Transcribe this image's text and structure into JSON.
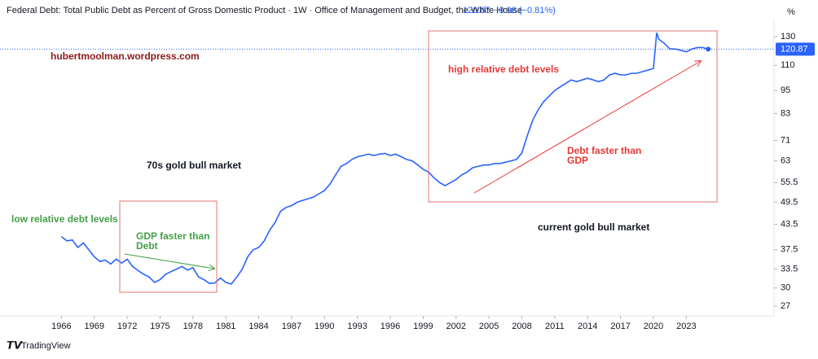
{
  "chart_data": {
    "type": "line",
    "title": "Federal Debt: Total Public Debt as Percent of Gross Domestic Product · 1W · Office of Management and Budget, the White House",
    "last_value": 120.87,
    "change_label": "−0.98 (−0.81%)",
    "y_unit": "%",
    "brand": "TradingView",
    "annotations": [
      [
        "hubertmoolman.wordpress.com"
      ],
      [
        "high relative debt levels"
      ],
      [
        "Debt faster than",
        "GDP"
      ],
      [
        "70s gold bull market"
      ],
      [
        "low relative debt levels"
      ],
      [
        "GDP faster than",
        "Debt"
      ],
      [
        "current gold bull market"
      ]
    ],
    "log_scale": true,
    "grid": false,
    "color": "#2962ff",
    "xlim": [
      1960.4,
      2031
    ],
    "ylim": [
      25.5,
      143
    ],
    "xticks": [
      1966,
      1969,
      1972,
      1975,
      1978,
      1981,
      1984,
      1987,
      1990,
      1993,
      1996,
      1999,
      2002,
      2005,
      2008,
      2011,
      2014,
      2017,
      2020,
      2023
    ],
    "yticks": [
      27,
      30,
      33.5,
      37.5,
      43.5,
      49.5,
      55.5,
      63,
      71,
      83,
      95,
      110,
      130
    ],
    "x": [
      1966,
      1966.5,
      1967,
      1967.5,
      1968,
      1968.5,
      1969,
      1969.5,
      1970,
      1970.5,
      1971,
      1971.5,
      1972,
      1972.5,
      1973,
      1973.5,
      1974,
      1974.5,
      1975,
      1975.5,
      1976,
      1976.5,
      1977,
      1977.5,
      1978,
      1978.5,
      1979,
      1979.5,
      1980,
      1980.5,
      1981,
      1981.5,
      1982,
      1982.5,
      1983,
      1983.5,
      1984,
      1984.5,
      1985,
      1985.5,
      1986,
      1986.5,
      1987,
      1987.5,
      1988,
      1988.5,
      1989,
      1989.5,
      1990,
      1990.5,
      1991,
      1991.5,
      1992,
      1992.5,
      1993,
      1993.5,
      1994,
      1994.5,
      1995,
      1995.5,
      1996,
      1996.5,
      1997,
      1997.5,
      1998,
      1998.5,
      1999,
      1999.5,
      2000,
      2000.5,
      2001,
      2001.5,
      2002,
      2002.5,
      2003,
      2003.5,
      2004,
      2004.5,
      2005,
      2005.5,
      2006,
      2006.5,
      2007,
      2007.5,
      2008,
      2008.5,
      2009,
      2009.5,
      2010,
      2010.5,
      2011,
      2011.5,
      2012,
      2012.5,
      2013,
      2013.5,
      2014,
      2014.5,
      2015,
      2015.5,
      2016,
      2016.5,
      2017,
      2017.5,
      2018,
      2018.5,
      2019,
      2019.5,
      2020,
      2020.3,
      2020.5,
      2021,
      2021.5,
      2022,
      2022.5,
      2023,
      2023.5,
      2024,
      2024.5,
      2025
    ],
    "values": [
      40.5,
      39.5,
      39.7,
      38,
      39,
      37.5,
      36,
      35,
      35.3,
      34.5,
      35.5,
      34.7,
      35.5,
      34,
      33.2,
      32.5,
      32,
      31,
      31.5,
      32.5,
      33,
      33.5,
      34,
      33.3,
      33.8,
      32,
      31.5,
      30.8,
      30.9,
      31.8,
      31,
      30.7,
      32,
      33.5,
      36,
      37.5,
      38,
      39.5,
      42,
      44,
      47,
      48,
      48.5,
      49.5,
      50,
      50.5,
      51,
      52,
      53,
      55,
      58,
      61,
      62,
      63.5,
      64.5,
      65,
      65.5,
      65,
      65.5,
      65.8,
      65,
      65.5,
      64.5,
      63.5,
      63,
      61.5,
      60,
      59,
      57,
      55.5,
      54.5,
      55.5,
      56.5,
      58,
      59,
      60.5,
      61,
      61.5,
      61.5,
      62,
      62,
      62.5,
      63,
      63.5,
      66,
      73,
      80,
      85,
      89,
      92,
      95,
      97,
      99,
      101,
      100,
      101,
      102,
      101,
      100,
      101,
      104,
      105,
      104,
      104,
      105,
      105,
      106,
      107,
      108,
      133,
      128,
      125,
      121,
      121,
      120,
      119,
      121,
      122,
      122,
      120.87
    ]
  }
}
